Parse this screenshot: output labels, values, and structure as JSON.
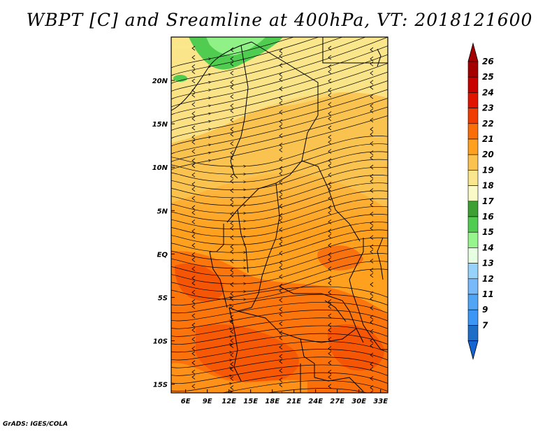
{
  "title": "WBPT [C] and Sreamline at 400hPa, VT: 2018121600",
  "footer": "GrADS: IGES/COLA",
  "chart_data": {
    "type": "heatmap",
    "title": "WBPT [C] and Sreamline at 400hPa, VT: 2018121600",
    "variable": "WBPT",
    "units": "C",
    "level": "400hPa",
    "valid_time": "2018121600",
    "lon_range": [
      4,
      34
    ],
    "lat_range": [
      -16,
      25
    ],
    "x_ticks": [
      {
        "value": 6,
        "label": "6E"
      },
      {
        "value": 9,
        "label": "9E"
      },
      {
        "value": 12,
        "label": "12E"
      },
      {
        "value": 15,
        "label": "15E"
      },
      {
        "value": 18,
        "label": "18E"
      },
      {
        "value": 21,
        "label": "21E"
      },
      {
        "value": 24,
        "label": "24E"
      },
      {
        "value": 27,
        "label": "27E"
      },
      {
        "value": 30,
        "label": "30E"
      },
      {
        "value": 33,
        "label": "33E"
      }
    ],
    "y_ticks": [
      {
        "value": 20,
        "label": "20N"
      },
      {
        "value": 15,
        "label": "15N"
      },
      {
        "value": 10,
        "label": "10N"
      },
      {
        "value": 5,
        "label": "5N"
      },
      {
        "value": 0,
        "label": "EQ"
      },
      {
        "value": -5,
        "label": "5S"
      },
      {
        "value": -10,
        "label": "10S"
      },
      {
        "value": -15,
        "label": "15S"
      }
    ],
    "colorbar": [
      {
        "label": "26",
        "color": "#a50000"
      },
      {
        "label": "25",
        "color": "#c80000"
      },
      {
        "label": "24",
        "color": "#e11400"
      },
      {
        "label": "23",
        "color": "#f03c00"
      },
      {
        "label": "22",
        "color": "#fa6e0a"
      },
      {
        "label": "21",
        "color": "#ffa01e"
      },
      {
        "label": "20",
        "color": "#fac350"
      },
      {
        "label": "19",
        "color": "#fae68c"
      },
      {
        "label": "18",
        "color": "#fafac8"
      },
      {
        "label": "17",
        "color": "#3ca032"
      },
      {
        "label": "16",
        "color": "#50cd50"
      },
      {
        "label": "15",
        "color": "#96f58c"
      },
      {
        "label": "14",
        "color": "#e6ffe1"
      },
      {
        "label": "13",
        "color": "#96d2fa"
      },
      {
        "label": "12",
        "color": "#78b9fa"
      },
      {
        "label": "11",
        "color": "#50a5f5"
      },
      {
        "label": "9",
        "color": "#3c96f5"
      },
      {
        "label": "7",
        "color": "#1e6ec8"
      }
    ],
    "colorbar_bottom_color": "#1464d2",
    "colorbar_top_color": "#a50000",
    "streamline_direction": "westward",
    "grid": false
  }
}
